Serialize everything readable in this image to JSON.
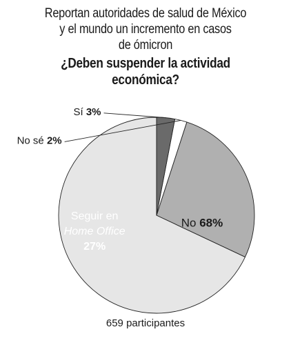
{
  "header": {
    "title_lines": [
      "Reportan autoridades de salud de México",
      "y el mundo un incremento en casos",
      "de ómicron"
    ],
    "question_lines": [
      "¿Deben suspender la actividad",
      "económica?"
    ]
  },
  "chart_data": {
    "type": "pie",
    "slices": [
      {
        "label": "No",
        "label_lines": [
          "No"
        ],
        "value": 68,
        "value_text": "68%",
        "color": "#e6e6e6"
      },
      {
        "label": "Seguir en Home Office",
        "label_lines": [
          "Seguir en",
          "Home Office"
        ],
        "value": 27,
        "value_text": "27%",
        "color": "#b0b0b0"
      },
      {
        "label": "No sé",
        "label_lines": [
          "No sé"
        ],
        "value": 2,
        "value_text": "2%",
        "color": "#ffffff"
      },
      {
        "label": "Sí",
        "label_lines": [
          "Sí"
        ],
        "value": 3,
        "value_text": "3%",
        "color": "#6a6a6a"
      }
    ]
  },
  "footer": {
    "participants": "659 participantes"
  }
}
